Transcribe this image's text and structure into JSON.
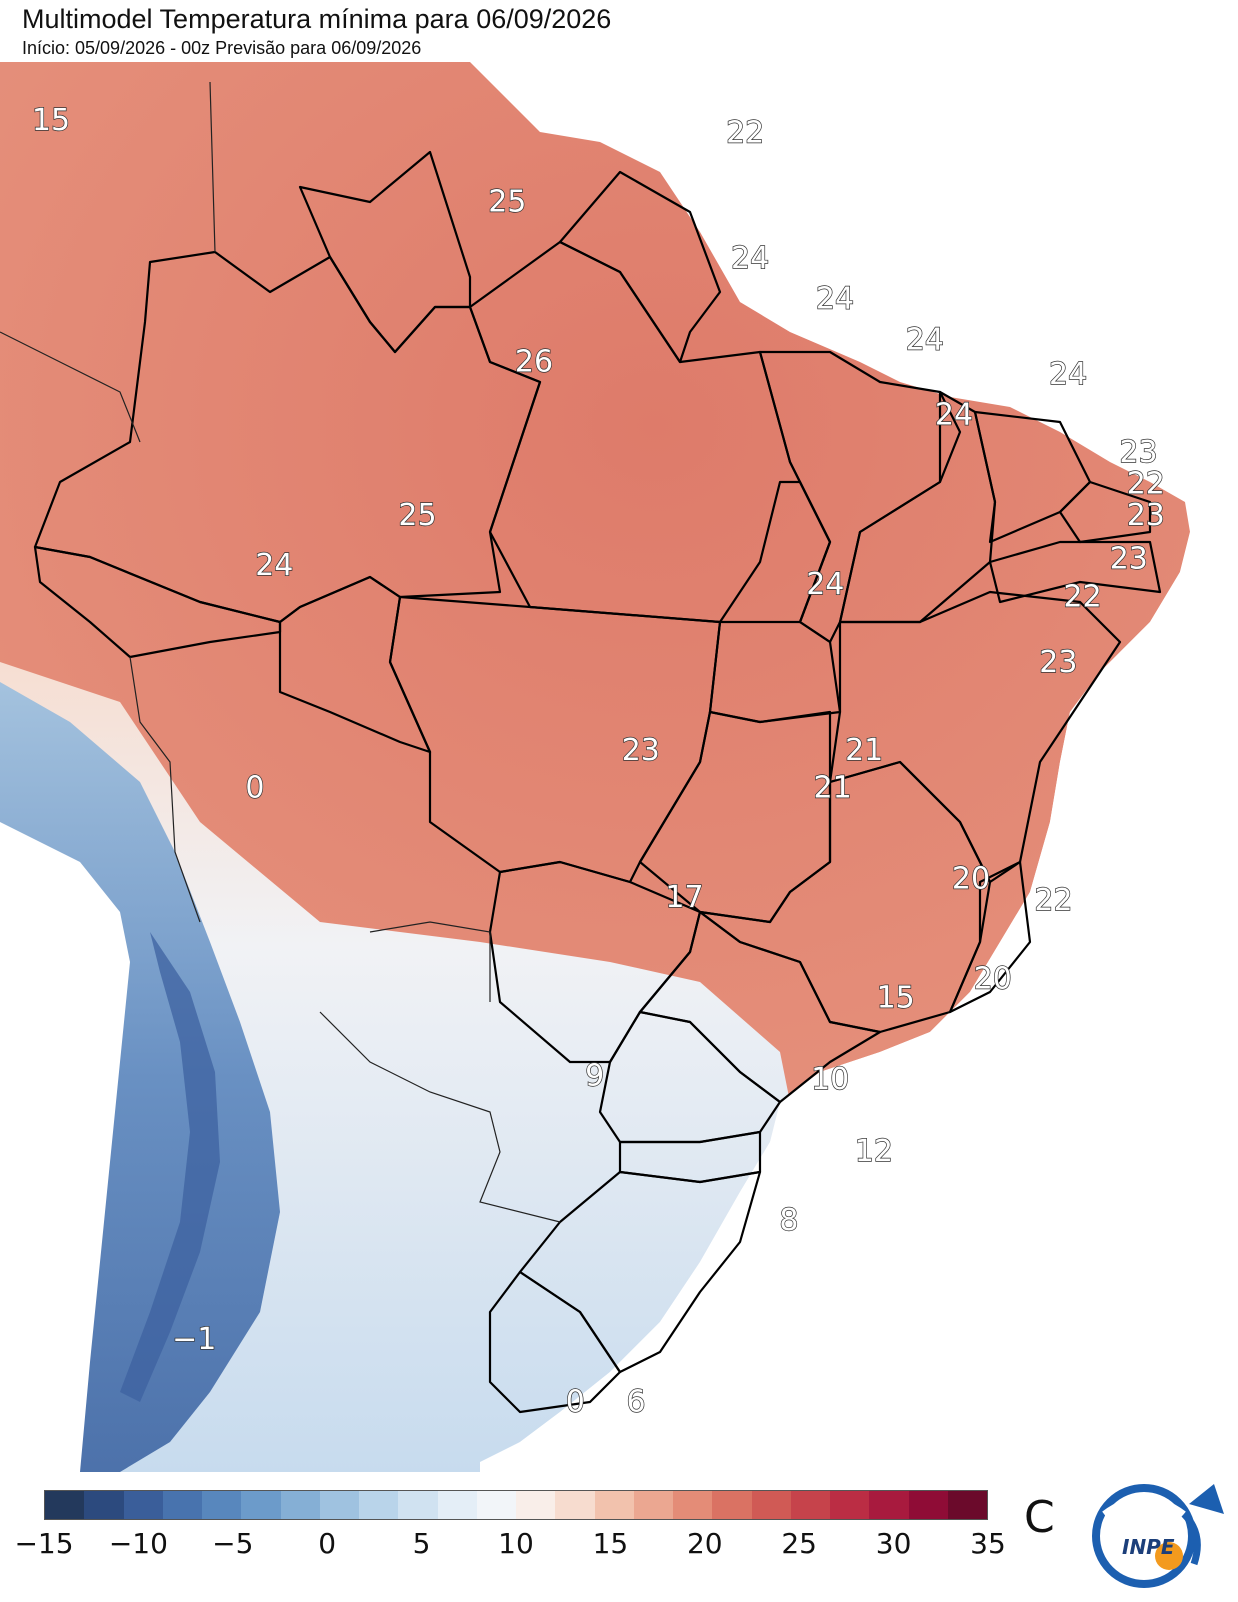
{
  "header": {
    "title": "Multimodel Temperatura mínima para 06/09/2026",
    "subtitle": "Início: 05/09/2026 - 00z  Previsão para 06/09/2026"
  },
  "map_labels": [
    {
      "text": "15",
      "lon": -79.9,
      "lat": 4.1
    },
    {
      "text": "22",
      "lon": -51.3,
      "lat": 3.7
    },
    {
      "text": "25",
      "lon": -61.1,
      "lat": 1.5
    },
    {
      "text": "24",
      "lon": -51.1,
      "lat": -0.3
    },
    {
      "text": "24",
      "lon": -47.6,
      "lat": -1.6
    },
    {
      "text": "24",
      "lon": -43.9,
      "lat": -2.9
    },
    {
      "text": "24",
      "lon": -38.0,
      "lat": -4.0
    },
    {
      "text": "24",
      "lon": -42.7,
      "lat": -5.3
    },
    {
      "text": "23",
      "lon": -35.1,
      "lat": -6.5
    },
    {
      "text": "22",
      "lon": -34.8,
      "lat": -7.5
    },
    {
      "text": "23",
      "lon": -34.8,
      "lat": -8.5
    },
    {
      "text": "23",
      "lon": -35.5,
      "lat": -9.9
    },
    {
      "text": "22",
      "lon": -37.4,
      "lat": -11.1
    },
    {
      "text": "23",
      "lon": -38.4,
      "lat": -13.2
    },
    {
      "text": "26",
      "lon": -60.0,
      "lat": -3.6
    },
    {
      "text": "25",
      "lon": -64.8,
      "lat": -8.5
    },
    {
      "text": "24",
      "lon": -70.7,
      "lat": -10.1
    },
    {
      "text": "24",
      "lon": -48.0,
      "lat": -10.7
    },
    {
      "text": "23",
      "lon": -55.6,
      "lat": -16.0
    },
    {
      "text": "21",
      "lon": -46.4,
      "lat": -16.0
    },
    {
      "text": "21",
      "lon": -47.7,
      "lat": -17.2
    },
    {
      "text": "0",
      "lon": -71.5,
      "lat": -17.2
    },
    {
      "text": "20",
      "lon": -42.0,
      "lat": -20.1
    },
    {
      "text": "22",
      "lon": -38.6,
      "lat": -20.8
    },
    {
      "text": "17",
      "lon": -53.8,
      "lat": -20.7
    },
    {
      "text": "20",
      "lon": -41.1,
      "lat": -23.3
    },
    {
      "text": "15",
      "lon": -45.1,
      "lat": -23.9
    },
    {
      "text": "9",
      "lon": -57.5,
      "lat": -26.4
    },
    {
      "text": "10",
      "lon": -47.8,
      "lat": -26.5
    },
    {
      "text": "12",
      "lon": -46.0,
      "lat": -28.8
    },
    {
      "text": "8",
      "lon": -49.5,
      "lat": -31.0
    },
    {
      "text": "-1",
      "lon": -74.0,
      "lat": -34.8
    },
    {
      "text": "0",
      "lon": -58.3,
      "lat": -36.8
    },
    {
      "text": "6",
      "lon": -55.8,
      "lat": -36.8
    }
  ],
  "colorbar": {
    "ticks": [
      "−15",
      "−10",
      "−5",
      "0",
      "5",
      "10",
      "15",
      "20",
      "25",
      "30",
      "35"
    ],
    "unit": "C",
    "colors": [
      "#23395c",
      "#2c4a7e",
      "#3a5e9a",
      "#4873ae",
      "#5887bd",
      "#6c9bca",
      "#85afd5",
      "#9fc2e0",
      "#b9d4ea",
      "#d0e2f1",
      "#e4eef7",
      "#f2f5f9",
      "#f9eee9",
      "#f7dccf",
      "#f2c2ad",
      "#eba791",
      "#e48c77",
      "#da7263",
      "#d05a55",
      "#c6434b",
      "#bb2d44",
      "#a81a3e",
      "#8f0c36",
      "#6b0a2b"
    ]
  },
  "logo": {
    "text": "INPE"
  }
}
